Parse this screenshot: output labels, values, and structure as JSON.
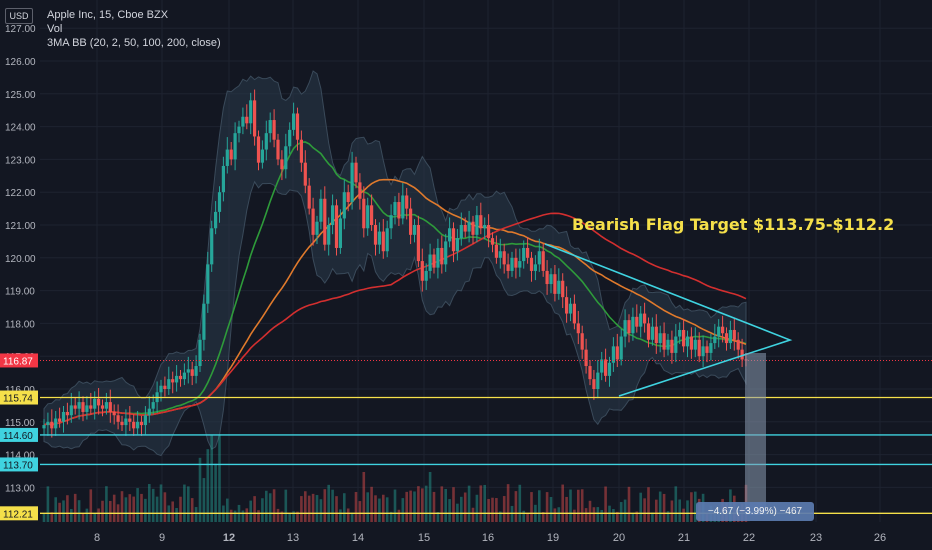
{
  "header": {
    "currency_badge": "USD",
    "title": "Apple Inc, 15, Cboe BZX",
    "volume_label": "Vol",
    "indicator_label": "3MA BB (20, 2, 50, 100, 200, close)"
  },
  "annotation": "Bearish Flag Target $113.75-$112.2",
  "measure_label": "−4.67 (−3.99%) −467",
  "colors": {
    "background": "#131722",
    "up": "#26a69a",
    "down": "#ef5350",
    "ma_short": "#2e9b3a",
    "ma_mid": "#e07a2c",
    "ma_long": "#d32f2f",
    "bands": "#2a3a4a",
    "triangle": "#3fd3e0",
    "yellow_line": "#f5e04a",
    "cyan_line": "#3fd3e0",
    "last_price": "#f23645"
  },
  "chart_data": {
    "type": "candlestick",
    "ylim": [
      111.8,
      127.3
    ],
    "y_ticks": [
      "127.00",
      "126.00",
      "125.00",
      "124.00",
      "123.00",
      "122.00",
      "121.00",
      "120.00",
      "119.00",
      "118.00",
      "117.00",
      "116.00",
      "115.00",
      "114.00",
      "113.00"
    ],
    "x_ticks": [
      "8",
      "9",
      "12",
      "13",
      "14",
      "15",
      "16",
      "19",
      "20",
      "21",
      "22",
      "23",
      "26"
    ],
    "price_labels": [
      {
        "value": 116.87,
        "label": "116.87",
        "color": "#f23645",
        "text_color": "#ffffff"
      },
      {
        "value": 115.74,
        "label": "115.74",
        "color": "#f5e04a",
        "text_color": "#131722"
      },
      {
        "value": 114.6,
        "label": "114.60",
        "color": "#3fd3e0",
        "text_color": "#131722"
      },
      {
        "value": 113.7,
        "label": "113.70",
        "color": "#3fd3e0",
        "text_color": "#131722"
      },
      {
        "value": 112.21,
        "label": "112.21",
        "color": "#f5e04a",
        "text_color": "#131722"
      }
    ],
    "horizontal_lines": [
      {
        "value": 115.74,
        "color": "#f5e04a"
      },
      {
        "value": 114.6,
        "color": "#3fd3e0"
      },
      {
        "value": 113.7,
        "color": "#3fd3e0"
      },
      {
        "value": 112.21,
        "color": "#f5e04a"
      }
    ],
    "last_price": 116.87,
    "candle_closes": [
      114.9,
      115.0,
      114.8,
      115.1,
      115.0,
      115.3,
      115.2,
      115.5,
      115.4,
      115.6,
      115.3,
      115.5,
      115.4,
      115.7,
      115.5,
      115.4,
      115.6,
      115.3,
      115.2,
      115.0,
      114.9,
      115.1,
      115.0,
      114.8,
      115.0,
      114.9,
      115.2,
      115.4,
      115.6,
      115.9,
      116.1,
      116.0,
      116.3,
      116.2,
      116.4,
      116.3,
      116.5,
      116.6,
      116.4,
      116.7,
      117.5,
      118.6,
      119.8,
      120.9,
      121.4,
      122.0,
      122.8,
      123.3,
      123.0,
      123.8,
      124.0,
      124.3,
      124.1,
      124.8,
      123.7,
      122.9,
      123.3,
      123.8,
      124.2,
      123.6,
      123.0,
      122.7,
      123.4,
      123.9,
      124.4,
      123.6,
      122.9,
      122.2,
      121.5,
      120.7,
      121.1,
      121.8,
      120.4,
      121.0,
      121.6,
      120.3,
      121.2,
      122.0,
      121.7,
      122.9,
      122.3,
      121.8,
      120.9,
      121.6,
      121.0,
      120.4,
      120.8,
      120.2,
      120.9,
      121.3,
      121.7,
      121.2,
      121.9,
      121.5,
      120.7,
      121.0,
      119.9,
      119.3,
      119.6,
      120.1,
      119.7,
      120.3,
      119.8,
      120.5,
      120.9,
      120.2,
      120.6,
      121.0,
      120.8,
      121.1,
      120.7,
      121.3,
      120.9,
      121.0,
      120.6,
      120.4,
      120.0,
      120.2,
      119.8,
      119.6,
      120.0,
      119.7,
      119.9,
      120.3,
      120.0,
      119.6,
      119.8,
      120.2,
      119.6,
      119.2,
      119.5,
      118.9,
      119.3,
      118.8,
      118.3,
      118.6,
      118.0,
      117.7,
      117.2,
      116.7,
      116.3,
      116.0,
      116.5,
      116.9,
      116.4,
      116.8,
      117.3,
      116.9,
      117.6,
      118.1,
      117.7,
      118.2,
      117.9,
      118.3,
      118.0,
      117.5,
      117.9,
      117.4,
      117.7,
      117.2,
      117.5,
      117.1,
      117.6,
      117.8,
      117.3,
      117.6,
      117.2,
      117.5,
      117.0,
      117.3,
      117.1,
      117.4,
      117.6,
      117.9,
      117.7,
      117.4,
      117.8,
      117.5,
      117.2,
      116.9,
      116.87
    ]
  }
}
